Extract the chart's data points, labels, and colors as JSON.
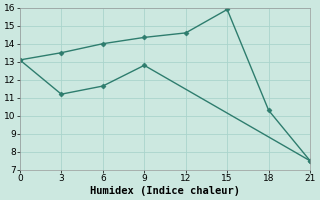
{
  "line1_x": [
    0,
    3,
    6,
    9,
    12,
    15,
    18,
    21
  ],
  "line1_y": [
    13.1,
    13.5,
    14.0,
    14.35,
    14.6,
    15.9,
    10.3,
    7.5
  ],
  "line2_x": [
    0,
    3,
    6,
    9,
    21
  ],
  "line2_y": [
    13.1,
    11.2,
    11.65,
    12.8,
    7.5
  ],
  "line_color": "#2e7d6e",
  "marker": "D",
  "marker_size": 2.5,
  "linewidth": 1.0,
  "linestyle": "-",
  "xlabel": "Humidex (Indice chaleur)",
  "xlim": [
    0,
    21
  ],
  "ylim": [
    7,
    16
  ],
  "xticks": [
    0,
    3,
    6,
    9,
    12,
    15,
    18,
    21
  ],
  "yticks": [
    7,
    8,
    9,
    10,
    11,
    12,
    13,
    14,
    15,
    16
  ],
  "bg_color": "#cce8e0",
  "grid_major_color": "#aad4cc",
  "grid_minor_color": "#bbddd6",
  "tick_fontsize": 6.5,
  "label_fontsize": 7.5
}
